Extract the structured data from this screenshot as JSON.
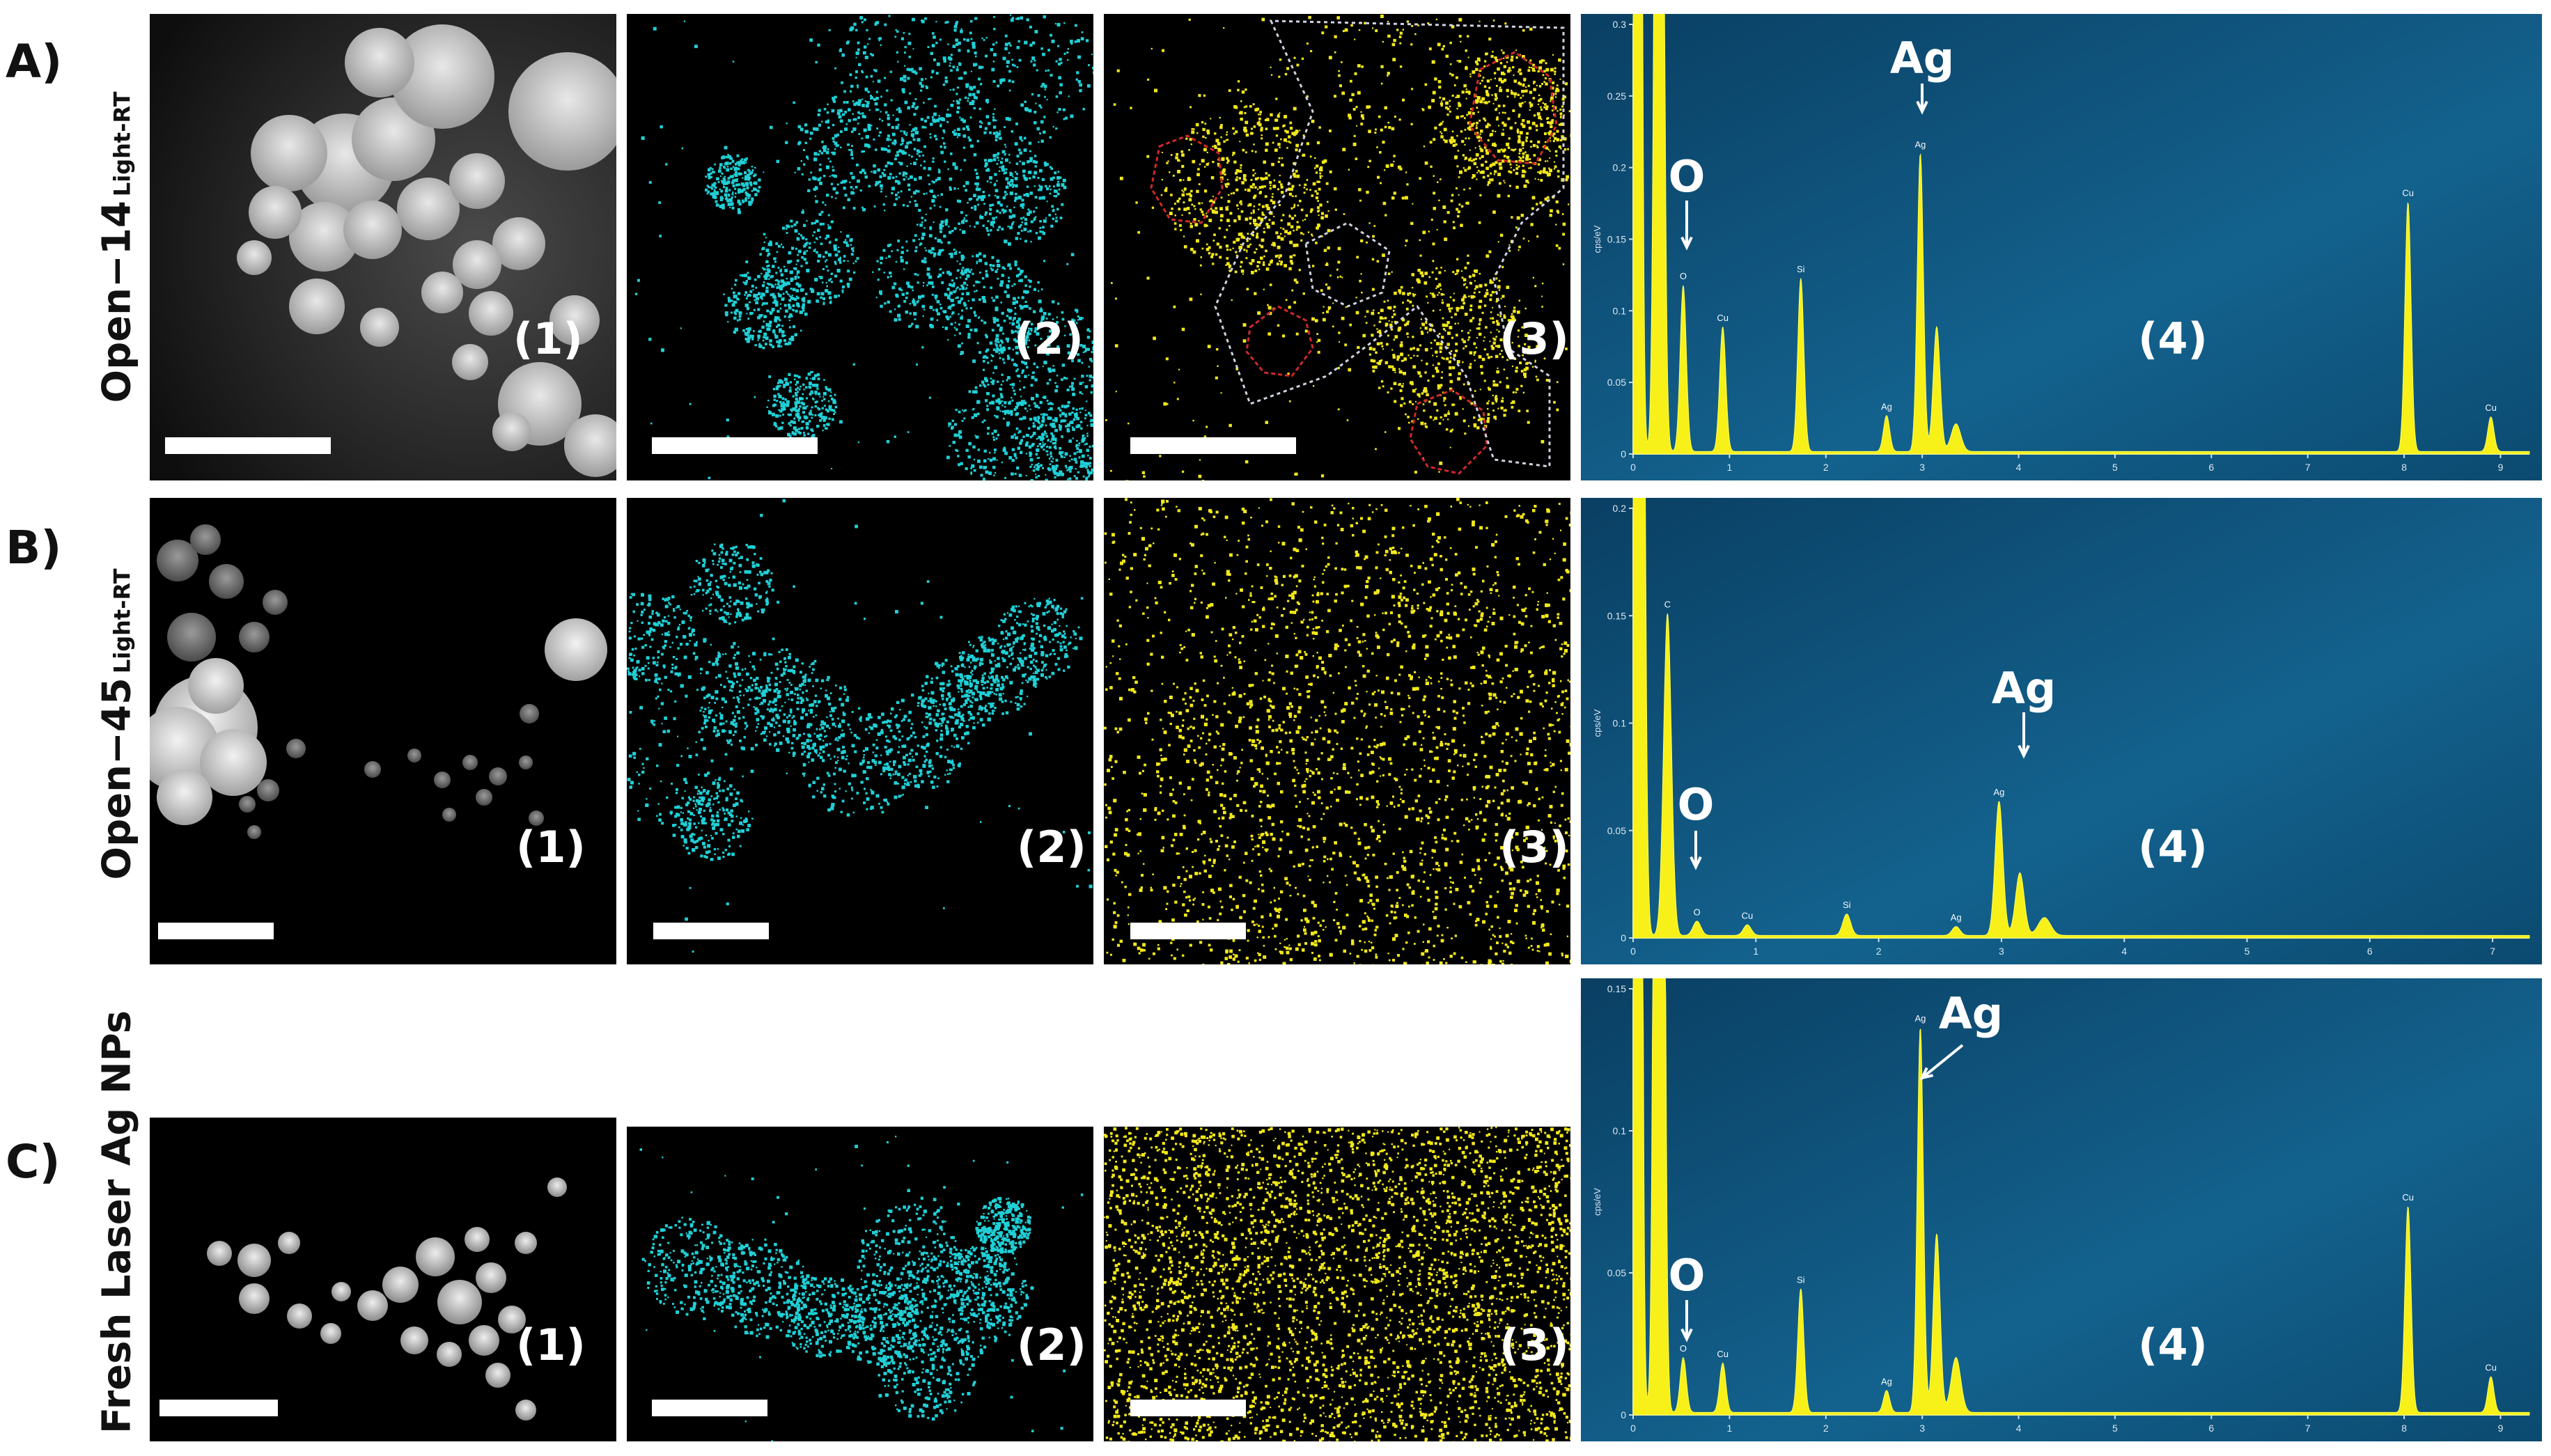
{
  "rows": [
    {
      "letter": "A)",
      "sample": "Open−14",
      "condition": "Light-RT",
      "panels": [
        "(1)",
        "(2)",
        "(3)",
        "(4)"
      ],
      "spectrum": {
        "yticks": [
          "0.3",
          "0.25",
          "0.2",
          "0.15",
          "0.1",
          "0.05",
          "0"
        ],
        "ylabel": "cps/eV",
        "xticks": [
          "0",
          "1",
          "2",
          "3",
          "4",
          "5",
          "6",
          "7",
          "8",
          "9",
          "keV"
        ],
        "annotations": {
          "big_ag": "Ag",
          "big_o": "O"
        },
        "peak_labels": [
          "O",
          "Cu",
          "Si",
          "Ag",
          "Ag",
          "Cu",
          "Cu"
        ]
      }
    },
    {
      "letter": "B)",
      "sample": "Open−45",
      "condition": "Light-RT",
      "panels": [
        "(1)",
        "(2)",
        "(3)",
        "(4)"
      ],
      "spectrum": {
        "yticks": [
          "0.2",
          "0.15",
          "0.1",
          "0.05",
          "0"
        ],
        "ylabel": "cps/eV",
        "xticks": [
          "0",
          "1",
          "2",
          "3",
          "4",
          "5",
          "6",
          "7",
          "keV"
        ],
        "annotations": {
          "big_ag": "Ag",
          "big_o": "O"
        },
        "peak_labels": [
          "C",
          "O",
          "Cu",
          "Si",
          "Ag",
          "Ag"
        ]
      }
    },
    {
      "letter": "C)",
      "sample": "Fresh Laser Ag NPs",
      "condition": "",
      "panels": [
        "(1)",
        "(2)",
        "(3)",
        "(4)"
      ],
      "spectrum": {
        "yticks": [
          "0.15",
          "0.1",
          "0.05",
          "0"
        ],
        "ylabel": "cps/eV",
        "xticks": [
          "0",
          "1",
          "2",
          "3",
          "4",
          "5",
          "6",
          "7",
          "8",
          "9"
        ],
        "annotations": {
          "big_ag": "Ag",
          "big_o": "O"
        },
        "peak_labels": [
          "O",
          "Cu",
          "Si",
          "Ag",
          "Ag",
          "Cu",
          "Cu"
        ]
      }
    }
  ],
  "colors": {
    "cyan_map": "#1fd0d6",
    "yellow_map": "#f2e81a",
    "spectrum_bg": "#0c4c72",
    "spectrum_fill": "#f7f019",
    "outline_red": "#d0282d"
  },
  "chart_data": [
    {
      "type": "area",
      "panel": "A-4",
      "xlabel": "keV",
      "ylabel": "cps/eV",
      "xlim": [
        0,
        9.3
      ],
      "ylim": [
        0,
        0.31
      ],
      "peaks": [
        {
          "label": "O",
          "x": 0.52,
          "y": 0.12
        },
        {
          "label": "Cu",
          "x": 0.93,
          "y": 0.09
        },
        {
          "label": "Si",
          "x": 1.74,
          "y": 0.125
        },
        {
          "label": "Ag",
          "x": 2.63,
          "y": 0.026
        },
        {
          "label": "Ag",
          "x": 2.98,
          "y": 0.215
        },
        {
          "label": "Cu",
          "x": 8.04,
          "y": 0.18
        },
        {
          "label": "Cu",
          "x": 8.9,
          "y": 0.025
        }
      ]
    },
    {
      "type": "area",
      "panel": "B-4",
      "xlabel": "keV",
      "ylabel": "cps/eV",
      "xlim": [
        0,
        7.3
      ],
      "ylim": [
        0,
        0.24
      ],
      "peaks": [
        {
          "label": "C",
          "x": 0.28,
          "y": 0.18
        },
        {
          "label": "O",
          "x": 0.52,
          "y": 0.008
        },
        {
          "label": "Cu",
          "x": 0.93,
          "y": 0.006
        },
        {
          "label": "Si",
          "x": 1.74,
          "y": 0.012
        },
        {
          "label": "Ag",
          "x": 2.63,
          "y": 0.005
        },
        {
          "label": "Ag",
          "x": 2.98,
          "y": 0.075
        }
      ]
    },
    {
      "type": "area",
      "panel": "C-4",
      "xlabel": "",
      "ylabel": "cps/eV",
      "xlim": [
        0,
        9.3
      ],
      "ylim": [
        0,
        0.155
      ],
      "peaks": [
        {
          "label": "O",
          "x": 0.52,
          "y": 0.02
        },
        {
          "label": "Cu",
          "x": 0.93,
          "y": 0.018
        },
        {
          "label": "Si",
          "x": 1.74,
          "y": 0.045
        },
        {
          "label": "Ag",
          "x": 2.63,
          "y": 0.008
        },
        {
          "label": "Ag",
          "x": 2.98,
          "y": 0.14
        },
        {
          "label": "Cu",
          "x": 8.04,
          "y": 0.075
        },
        {
          "label": "Cu",
          "x": 8.9,
          "y": 0.013
        }
      ]
    }
  ]
}
